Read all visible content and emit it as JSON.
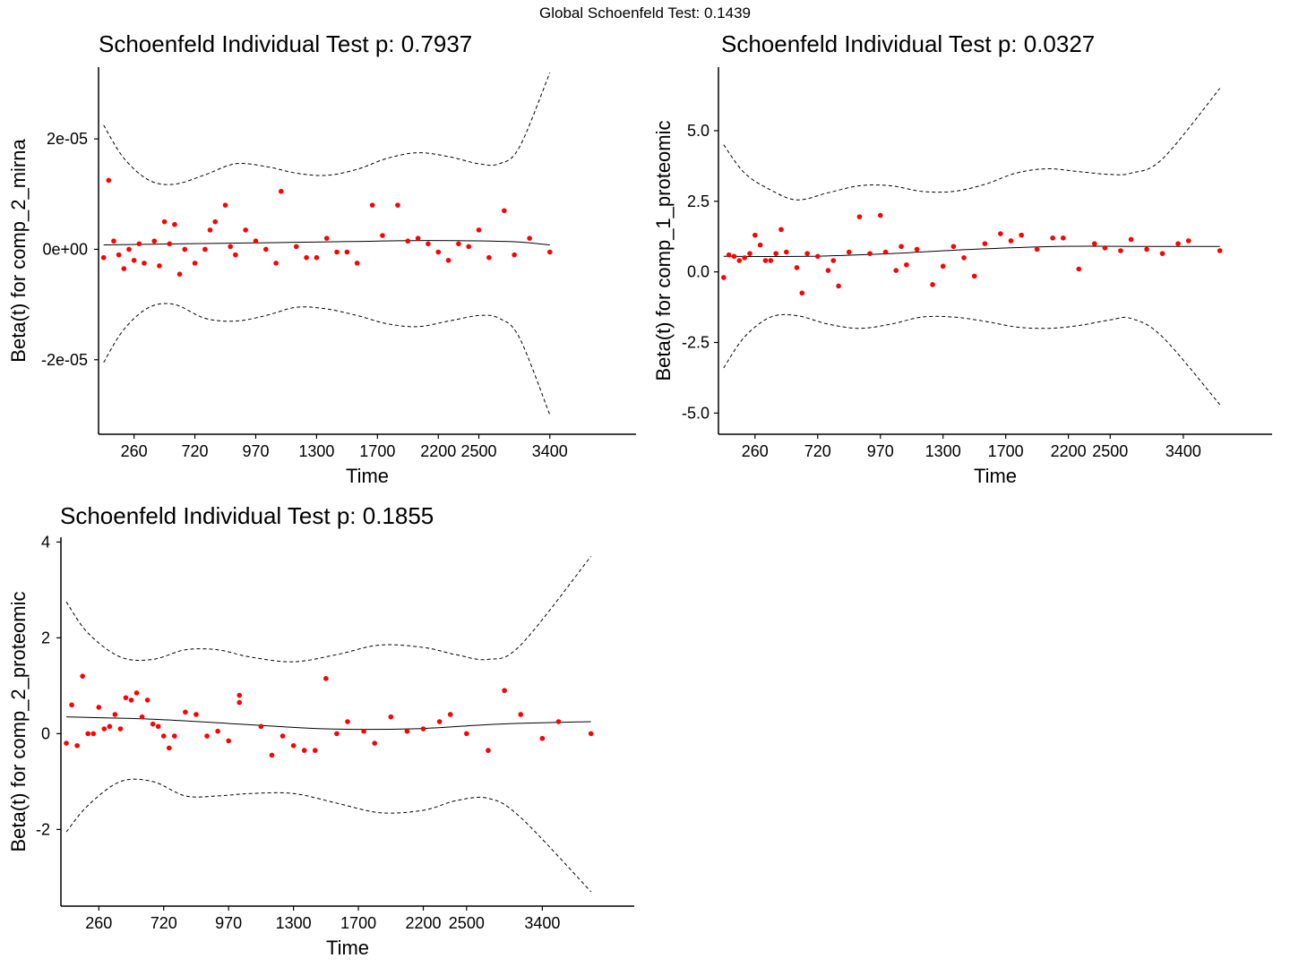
{
  "global_title": "Global Schoenfeld Test: 0.1439",
  "chart_data": [
    {
      "type": "scatter",
      "title": "Schoenfeld Individual Test p: 0.7937",
      "xlabel": "Time",
      "ylabel": "Beta(t) for comp_2_mirna",
      "x_tick_labels": [
        "260",
        "720",
        "970",
        "1300",
        "1700",
        "2200",
        "2500",
        "3400"
      ],
      "y_tick_labels": [
        "-2e-05",
        "0e+00",
        "2e-05"
      ],
      "y_tick_values": [
        -2e-05,
        0,
        2e-05
      ],
      "ylim": [
        -3.35e-05,
        3.3e-05
      ],
      "x_rank_range": [
        0.5,
        53.5
      ],
      "x_tick_ranks": [
        4,
        10,
        16,
        22,
        28,
        34,
        38,
        45
      ],
      "points_y_units": 1e-06,
      "points": [
        [
          1.0,
          -1.5
        ],
        [
          1.5,
          12.5
        ],
        [
          2.0,
          1.5
        ],
        [
          2.5,
          -1.0
        ],
        [
          3.0,
          -3.5
        ],
        [
          3.5,
          0.0
        ],
        [
          4.0,
          -2.0
        ],
        [
          4.5,
          1.0
        ],
        [
          5.0,
          -2.5
        ],
        [
          6.0,
          1.5
        ],
        [
          6.5,
          -3.0
        ],
        [
          7.0,
          5.0
        ],
        [
          7.5,
          1.0
        ],
        [
          8.0,
          4.5
        ],
        [
          8.5,
          -4.5
        ],
        [
          9.0,
          0.0
        ],
        [
          10.0,
          -2.5
        ],
        [
          11.0,
          0.0
        ],
        [
          11.5,
          3.5
        ],
        [
          12.0,
          5.0
        ],
        [
          13.0,
          8.0
        ],
        [
          13.5,
          0.5
        ],
        [
          14.0,
          -1.0
        ],
        [
          15.0,
          3.5
        ],
        [
          16.0,
          1.5
        ],
        [
          17.0,
          0.0
        ],
        [
          18.0,
          -2.5
        ],
        [
          18.5,
          10.5
        ],
        [
          20.0,
          0.5
        ],
        [
          21.0,
          -1.5
        ],
        [
          22.0,
          -1.5
        ],
        [
          23.0,
          2.0
        ],
        [
          24.0,
          -0.5
        ],
        [
          25.0,
          -0.5
        ],
        [
          26.0,
          -2.5
        ],
        [
          27.5,
          8.0
        ],
        [
          28.5,
          2.5
        ],
        [
          30.0,
          8.0
        ],
        [
          31.0,
          1.5
        ],
        [
          32.0,
          2.0
        ],
        [
          33.0,
          1.0
        ],
        [
          34.0,
          -0.5
        ],
        [
          35.0,
          -2.0
        ],
        [
          36.0,
          1.0
        ],
        [
          37.0,
          0.5
        ],
        [
          38.0,
          3.5
        ],
        [
          39.0,
          -1.5
        ],
        [
          40.5,
          7.0
        ],
        [
          41.5,
          -1.0
        ],
        [
          43.0,
          2.0
        ],
        [
          45.0,
          -0.5
        ]
      ],
      "smooth_y_units": 1e-06,
      "smooth": [
        [
          1,
          0.8
        ],
        [
          9,
          1.0
        ],
        [
          17,
          1.2
        ],
        [
          25,
          1.4
        ],
        [
          33,
          1.6
        ],
        [
          41,
          1.4
        ],
        [
          45,
          0.8
        ]
      ],
      "upper_band": [
        [
          1,
          22.5
        ],
        [
          3,
          16.5
        ],
        [
          5.5,
          12.5
        ],
        [
          8,
          11.8
        ],
        [
          11,
          13.5
        ],
        [
          14,
          15.5
        ],
        [
          17,
          15.0
        ],
        [
          20,
          13.8
        ],
        [
          23,
          13.4
        ],
        [
          26,
          14.5
        ],
        [
          29,
          16.5
        ],
        [
          32,
          17.5
        ],
        [
          35,
          16.8
        ],
        [
          38,
          15.5
        ],
        [
          40,
          15.5
        ],
        [
          42,
          18.5
        ],
        [
          45,
          32.0
        ]
      ],
      "lower_band": [
        [
          1,
          -20.5
        ],
        [
          3,
          -14.5
        ],
        [
          5.5,
          -10.5
        ],
        [
          8,
          -10.0
        ],
        [
          11,
          -12.5
        ],
        [
          14,
          -13.0
        ],
        [
          17,
          -12.0
        ],
        [
          20,
          -10.5
        ],
        [
          23,
          -10.8
        ],
        [
          26,
          -12.0
        ],
        [
          29,
          -13.5
        ],
        [
          32,
          -14.0
        ],
        [
          35,
          -13.0
        ],
        [
          38,
          -12.0
        ],
        [
          40,
          -12.5
        ],
        [
          42,
          -16.0
        ],
        [
          45,
          -30.0
        ]
      ],
      "point_color": "#ff0000"
    },
    {
      "type": "scatter",
      "title": "Schoenfeld Individual Test p: 0.0327",
      "xlabel": "Time",
      "ylabel": "Beta(t) for comp_1_proteomic",
      "x_tick_labels": [
        "260",
        "720",
        "970",
        "1300",
        "1700",
        "2200",
        "2500",
        "3400"
      ],
      "y_tick_labels": [
        "-5.0",
        "-2.5",
        "0.0",
        "2.5",
        "5.0"
      ],
      "y_tick_values": [
        -5.0,
        -2.5,
        0.0,
        2.5,
        5.0
      ],
      "ylim": [
        -5.75,
        7.25
      ],
      "x_rank_range": [
        0.5,
        53.5
      ],
      "x_tick_ranks": [
        4,
        10,
        16,
        22,
        28,
        34,
        38,
        45
      ],
      "points_y_units": 1,
      "points": [
        [
          1.0,
          -0.2
        ],
        [
          1.5,
          0.6
        ],
        [
          2.0,
          0.55
        ],
        [
          2.5,
          0.4
        ],
        [
          3.0,
          0.5
        ],
        [
          3.5,
          0.65
        ],
        [
          4.0,
          1.3
        ],
        [
          4.5,
          0.95
        ],
        [
          5.0,
          0.4
        ],
        [
          5.5,
          0.4
        ],
        [
          6.0,
          0.65
        ],
        [
          6.5,
          1.5
        ],
        [
          7.0,
          0.7
        ],
        [
          8.0,
          0.15
        ],
        [
          8.5,
          -0.75
        ],
        [
          9.0,
          0.65
        ],
        [
          10.0,
          0.55
        ],
        [
          11.0,
          0.05
        ],
        [
          11.5,
          0.4
        ],
        [
          12.0,
          -0.5
        ],
        [
          13.0,
          0.7
        ],
        [
          14.0,
          1.95
        ],
        [
          15.0,
          0.65
        ],
        [
          16.0,
          2.0
        ],
        [
          16.5,
          0.7
        ],
        [
          17.5,
          0.05
        ],
        [
          18.0,
          0.9
        ],
        [
          18.5,
          0.25
        ],
        [
          19.5,
          0.8
        ],
        [
          21.0,
          -0.45
        ],
        [
          22.0,
          0.2
        ],
        [
          23.0,
          0.9
        ],
        [
          24.0,
          0.5
        ],
        [
          25.0,
          -0.15
        ],
        [
          26.0,
          1.0
        ],
        [
          27.5,
          1.35
        ],
        [
          28.5,
          1.1
        ],
        [
          29.5,
          1.3
        ],
        [
          31.0,
          0.8
        ],
        [
          32.5,
          1.2
        ],
        [
          33.5,
          1.2
        ],
        [
          35.0,
          0.1
        ],
        [
          36.5,
          1.0
        ],
        [
          37.5,
          0.85
        ],
        [
          39.0,
          0.75
        ],
        [
          40.0,
          1.15
        ],
        [
          41.5,
          0.8
        ],
        [
          43.0,
          0.65
        ],
        [
          44.5,
          1.0
        ],
        [
          45.5,
          1.1
        ],
        [
          48.5,
          0.75
        ]
      ],
      "smooth_y_units": 1,
      "smooth": [
        [
          1,
          0.55
        ],
        [
          9,
          0.55
        ],
        [
          17,
          0.65
        ],
        [
          25,
          0.8
        ],
        [
          33,
          0.9
        ],
        [
          41,
          0.9
        ],
        [
          48.5,
          0.9
        ]
      ],
      "upper_band": [
        [
          1,
          4.5
        ],
        [
          3,
          3.5
        ],
        [
          5.5,
          2.9
        ],
        [
          8,
          2.55
        ],
        [
          11,
          2.8
        ],
        [
          14,
          3.05
        ],
        [
          17,
          3.05
        ],
        [
          20,
          2.85
        ],
        [
          23,
          2.85
        ],
        [
          26,
          3.1
        ],
        [
          29,
          3.5
        ],
        [
          32,
          3.65
        ],
        [
          35,
          3.55
        ],
        [
          38,
          3.45
        ],
        [
          40,
          3.5
        ],
        [
          43,
          4.0
        ],
        [
          48.5,
          6.5
        ]
      ],
      "lower_band": [
        [
          1,
          -3.4
        ],
        [
          3,
          -2.3
        ],
        [
          5.5,
          -1.6
        ],
        [
          8,
          -1.55
        ],
        [
          11,
          -1.85
        ],
        [
          14,
          -2.0
        ],
        [
          17,
          -1.85
        ],
        [
          20,
          -1.6
        ],
        [
          23,
          -1.6
        ],
        [
          26,
          -1.75
        ],
        [
          29,
          -1.95
        ],
        [
          32,
          -2.0
        ],
        [
          35,
          -1.9
        ],
        [
          38,
          -1.7
        ],
        [
          40,
          -1.65
        ],
        [
          43,
          -2.3
        ],
        [
          48.5,
          -4.7
        ]
      ],
      "point_color": "#ff0000"
    },
    {
      "type": "scatter",
      "title": "Schoenfeld Individual Test p: 0.1855",
      "xlabel": "Time",
      "ylabel": "Beta(t) for comp_2_proteomic",
      "x_tick_labels": [
        "260",
        "720",
        "970",
        "1300",
        "1700",
        "2200",
        "2500",
        "3400"
      ],
      "y_tick_labels": [
        "-2",
        "0",
        "2",
        "4"
      ],
      "y_tick_values": [
        -2,
        0,
        2,
        4
      ],
      "ylim": [
        -3.6,
        4.1
      ],
      "x_rank_range": [
        0.5,
        53.5
      ],
      "x_tick_ranks": [
        4,
        10,
        16,
        22,
        28,
        34,
        38,
        45
      ],
      "points_y_units": 1,
      "points": [
        [
          1.0,
          -0.2
        ],
        [
          1.5,
          0.6
        ],
        [
          2.0,
          -0.25
        ],
        [
          2.5,
          1.2
        ],
        [
          3.0,
          0.0
        ],
        [
          3.5,
          0.0
        ],
        [
          4.0,
          0.55
        ],
        [
          4.5,
          0.1
        ],
        [
          5.0,
          0.15
        ],
        [
          5.5,
          0.4
        ],
        [
          6.0,
          0.1
        ],
        [
          6.5,
          0.75
        ],
        [
          7.0,
          0.7
        ],
        [
          7.5,
          0.85
        ],
        [
          8.0,
          0.35
        ],
        [
          8.5,
          0.7
        ],
        [
          9.0,
          0.2
        ],
        [
          9.5,
          0.15
        ],
        [
          10.0,
          -0.05
        ],
        [
          10.5,
          -0.3
        ],
        [
          11.0,
          -0.05
        ],
        [
          12.0,
          0.45
        ],
        [
          13.0,
          0.4
        ],
        [
          14.0,
          -0.05
        ],
        [
          15.0,
          0.05
        ],
        [
          16.0,
          -0.15
        ],
        [
          17.0,
          0.8
        ],
        [
          17.0,
          0.65
        ],
        [
          19.0,
          0.15
        ],
        [
          20.0,
          -0.45
        ],
        [
          21.0,
          -0.05
        ],
        [
          22.0,
          -0.25
        ],
        [
          23.0,
          -0.35
        ],
        [
          24.0,
          -0.35
        ],
        [
          25.0,
          1.15
        ],
        [
          26.0,
          0.0
        ],
        [
          27.0,
          0.25
        ],
        [
          28.5,
          0.05
        ],
        [
          29.5,
          -0.2
        ],
        [
          31.0,
          0.35
        ],
        [
          32.5,
          0.05
        ],
        [
          34.0,
          0.1
        ],
        [
          35.5,
          0.25
        ],
        [
          36.5,
          0.4
        ],
        [
          38.0,
          0.0
        ],
        [
          40.0,
          -0.35
        ],
        [
          41.5,
          0.9
        ],
        [
          43.0,
          0.4
        ],
        [
          45.0,
          -0.1
        ],
        [
          46.5,
          0.25
        ],
        [
          49.5,
          0.0
        ]
      ],
      "smooth_y_units": 1,
      "smooth": [
        [
          1,
          0.35
        ],
        [
          9,
          0.3
        ],
        [
          17,
          0.2
        ],
        [
          25,
          0.1
        ],
        [
          33,
          0.1
        ],
        [
          41,
          0.2
        ],
        [
          49.5,
          0.25
        ]
      ],
      "upper_band": [
        [
          1,
          2.75
        ],
        [
          3,
          2.1
        ],
        [
          6,
          1.6
        ],
        [
          9,
          1.55
        ],
        [
          12,
          1.75
        ],
        [
          15,
          1.75
        ],
        [
          18,
          1.6
        ],
        [
          22,
          1.5
        ],
        [
          26,
          1.65
        ],
        [
          30,
          1.85
        ],
        [
          34,
          1.8
        ],
        [
          37,
          1.65
        ],
        [
          40,
          1.55
        ],
        [
          43,
          1.85
        ],
        [
          49.5,
          3.7
        ]
      ],
      "lower_band": [
        [
          1,
          -2.05
        ],
        [
          3,
          -1.5
        ],
        [
          6,
          -1.0
        ],
        [
          9,
          -1.0
        ],
        [
          12,
          -1.3
        ],
        [
          15,
          -1.3
        ],
        [
          18,
          -1.25
        ],
        [
          22,
          -1.25
        ],
        [
          26,
          -1.45
        ],
        [
          30,
          -1.65
        ],
        [
          34,
          -1.6
        ],
        [
          37,
          -1.4
        ],
        [
          40,
          -1.35
        ],
        [
          43,
          -1.75
        ],
        [
          49.5,
          -3.3
        ]
      ],
      "point_color": "#ff0000"
    }
  ]
}
